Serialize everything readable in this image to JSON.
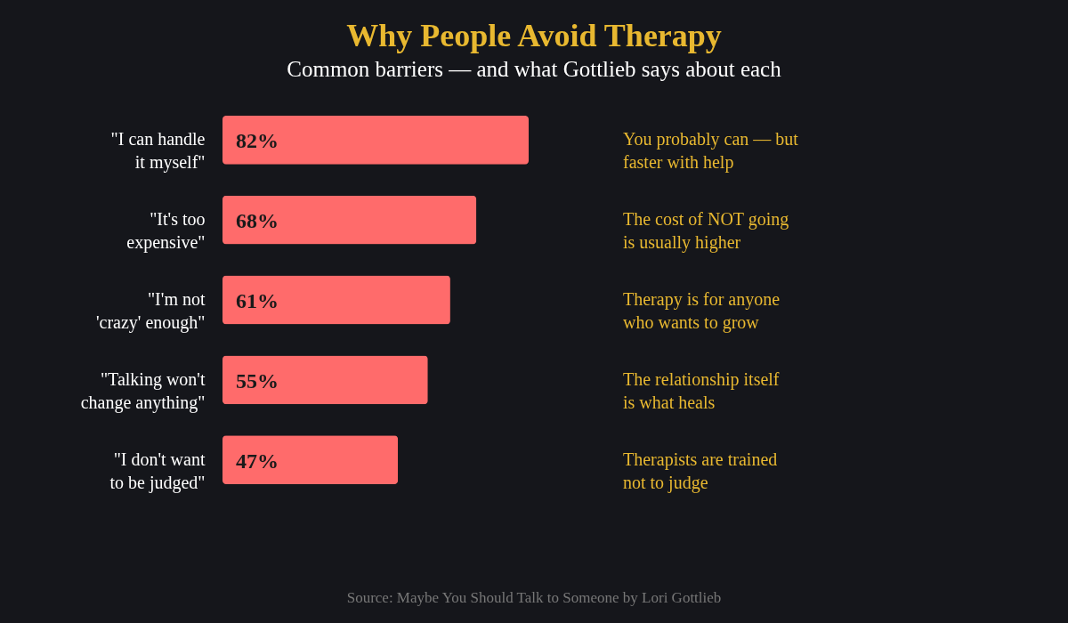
{
  "chart_data": {
    "type": "bar",
    "orientation": "horizontal",
    "title": "Why People Avoid Therapy",
    "subtitle": "Common barriers — and what Gottlieb says about each",
    "categories": [
      "\"I can handle it myself\"",
      "\"It's too expensive\"",
      "\"I'm not 'crazy' enough\"",
      "\"Talking won't change anything\"",
      "\"I don't want to be judged\""
    ],
    "values": [
      82,
      68,
      61,
      55,
      47
    ],
    "value_labels": [
      "82%",
      "68%",
      "61%",
      "55%",
      "47%"
    ],
    "color": "#ff6b6b",
    "annotations": [
      "You probably can — but faster with help",
      "The cost of NOT going is usually higher",
      "Therapy is for anyone who wants to grow",
      "The relationship itself is what heals",
      "Therapists are trained not to judge",
      "Source: Maybe You Should Talk to Someone by Lori Gottlieb"
    ],
    "grid": false
  }
}
